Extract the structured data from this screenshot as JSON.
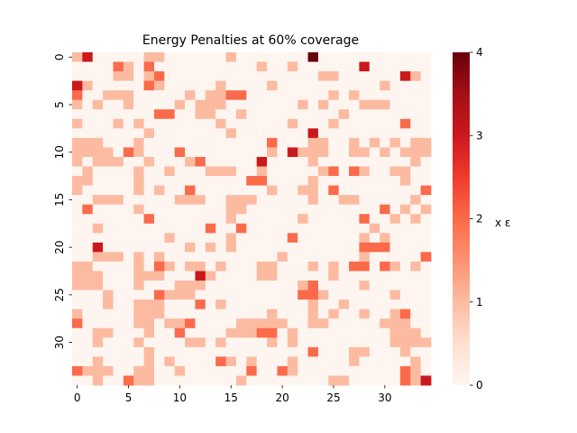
{
  "chart_data": {
    "type": "heatmap",
    "title": "Energy Penalties at 60% coverage",
    "colorbar_label": "x ε",
    "colormap": "Reds",
    "vmin": 0,
    "vmax": 4,
    "rows": 35,
    "cols": 35,
    "x_ticks": [
      0,
      5,
      10,
      15,
      20,
      25,
      30
    ],
    "y_ticks": [
      0,
      5,
      10,
      15,
      20,
      25,
      30
    ],
    "colorbar_ticks": [
      0,
      1,
      2,
      3,
      4
    ],
    "values": [
      [
        1,
        3,
        0,
        0,
        0,
        0,
        0,
        1,
        1,
        0,
        0,
        0,
        0,
        0,
        0,
        1,
        0,
        0,
        0,
        0,
        0,
        0,
        0,
        4,
        0,
        0,
        0,
        0,
        0,
        0,
        0,
        0,
        0,
        0,
        0
      ],
      [
        0,
        0,
        0,
        0,
        2,
        1,
        0,
        2,
        0,
        0,
        0,
        0,
        0,
        0,
        0,
        0,
        0,
        0,
        1,
        0,
        0,
        1,
        0,
        0,
        0,
        0,
        0,
        0,
        3,
        0,
        0,
        0,
        0,
        0,
        0
      ],
      [
        0,
        0,
        0,
        0,
        1,
        1,
        0,
        1,
        2,
        0,
        0,
        0,
        0,
        0,
        0,
        0,
        0,
        0,
        0,
        0,
        0,
        0,
        0,
        0,
        1,
        1,
        0,
        0,
        0,
        0,
        0,
        0,
        3,
        1,
        0
      ],
      [
        3,
        1,
        0,
        0,
        0,
        0,
        0,
        2,
        1,
        0,
        0,
        0,
        0,
        0,
        1,
        0,
        0,
        0,
        0,
        1,
        0,
        0,
        0,
        0,
        0,
        0,
        0,
        0,
        0,
        0,
        1,
        0,
        0,
        0,
        0
      ],
      [
        2,
        0,
        0,
        1,
        1,
        1,
        0,
        0,
        0,
        0,
        0,
        1,
        0,
        1,
        1,
        2,
        2,
        0,
        0,
        0,
        0,
        0,
        0,
        0,
        0,
        1,
        0,
        1,
        0,
        0,
        0,
        0,
        0,
        0,
        0
      ],
      [
        1,
        0,
        1,
        0,
        0,
        1,
        0,
        0,
        0,
        0,
        1,
        0,
        1,
        1,
        1,
        0,
        0,
        0,
        0,
        0,
        0,
        0,
        1,
        0,
        1,
        0,
        0,
        0,
        1,
        1,
        1,
        0,
        0,
        0,
        0
      ],
      [
        0,
        0,
        0,
        0,
        0,
        0,
        0,
        0,
        2,
        2,
        0,
        0,
        1,
        1,
        0,
        0,
        1,
        0,
        0,
        0,
        0,
        0,
        0,
        0,
        0,
        0,
        1,
        0,
        0,
        0,
        0,
        0,
        0,
        0,
        0
      ],
      [
        1,
        0,
        0,
        0,
        1,
        0,
        1,
        0,
        0,
        0,
        0,
        0,
        0,
        0,
        1,
        0,
        0,
        0,
        0,
        0,
        0,
        1,
        0,
        0,
        0,
        1,
        0,
        0,
        0,
        0,
        0,
        0,
        2,
        0,
        0
      ],
      [
        0,
        0,
        0,
        0,
        0,
        0,
        0,
        1,
        0,
        0,
        0,
        0,
        0,
        0,
        0,
        1,
        0,
        0,
        0,
        0,
        0,
        0,
        0,
        3,
        0,
        0,
        0,
        0,
        0,
        0,
        0,
        0,
        0,
        0,
        0
      ],
      [
        1,
        1,
        1,
        0,
        0,
        0,
        1,
        0,
        0,
        0,
        0,
        0,
        0,
        0,
        0,
        0,
        0,
        0,
        0,
        2,
        0,
        0,
        0,
        1,
        1,
        0,
        0,
        1,
        0,
        1,
        0,
        1,
        0,
        1,
        1
      ],
      [
        1,
        1,
        1,
        1,
        0,
        2,
        1,
        0,
        0,
        0,
        2,
        0,
        0,
        0,
        0,
        0,
        0,
        0,
        0,
        1,
        0,
        3,
        1,
        1,
        1,
        0,
        0,
        1,
        1,
        0,
        1,
        0,
        1,
        1,
        1
      ],
      [
        1,
        0,
        1,
        1,
        1,
        0,
        0,
        1,
        0,
        0,
        0,
        1,
        2,
        0,
        0,
        0,
        0,
        0,
        3,
        0,
        0,
        0,
        0,
        1,
        0,
        0,
        0,
        0,
        0,
        0,
        0,
        0,
        0,
        1,
        0
      ],
      [
        0,
        1,
        0,
        0,
        0,
        0,
        1,
        0,
        0,
        1,
        0,
        0,
        0,
        1,
        1,
        1,
        0,
        0,
        1,
        0,
        0,
        0,
        0,
        0,
        1,
        2,
        0,
        2,
        1,
        0,
        0,
        1,
        1,
        0,
        0
      ],
      [
        1,
        1,
        0,
        0,
        0,
        0,
        1,
        0,
        0,
        0,
        0,
        0,
        0,
        0,
        0,
        0,
        0,
        2,
        2,
        0,
        0,
        0,
        0,
        1,
        0,
        0,
        0,
        0,
        0,
        0,
        0,
        0,
        1,
        0,
        0
      ],
      [
        1,
        0,
        0,
        0,
        0,
        0,
        1,
        0,
        1,
        0,
        0,
        2,
        0,
        0,
        0,
        0,
        0,
        0,
        0,
        1,
        0,
        0,
        1,
        1,
        0,
        2,
        0,
        0,
        0,
        0,
        0,
        0,
        0,
        0,
        2
      ],
      [
        0,
        0,
        1,
        1,
        1,
        0,
        0,
        0,
        0,
        0,
        1,
        1,
        1,
        0,
        0,
        1,
        1,
        1,
        0,
        0,
        0,
        0,
        0,
        1,
        0,
        0,
        1,
        1,
        0,
        0,
        0,
        0,
        0,
        1,
        0
      ],
      [
        0,
        2,
        0,
        0,
        0,
        0,
        1,
        0,
        0,
        0,
        0,
        0,
        0,
        0,
        0,
        1,
        1,
        0,
        0,
        0,
        0,
        0,
        0,
        0,
        0,
        0,
        0,
        0,
        0,
        0,
        2,
        0,
        1,
        0,
        1
      ],
      [
        0,
        0,
        0,
        0,
        0,
        0,
        0,
        2,
        0,
        0,
        0,
        0,
        0,
        0,
        0,
        1,
        0,
        0,
        0,
        0,
        0,
        0,
        1,
        0,
        0,
        0,
        0,
        0,
        2,
        0,
        0,
        1,
        0,
        1,
        0
      ],
      [
        0,
        0,
        1,
        0,
        0,
        0,
        0,
        0,
        0,
        0,
        0,
        0,
        0,
        2,
        0,
        0,
        2,
        0,
        0,
        0,
        0,
        0,
        0,
        0,
        0,
        0,
        0,
        0,
        0,
        1,
        0,
        0,
        0,
        0,
        0
      ],
      [
        0,
        0,
        0,
        0,
        0,
        0,
        0,
        0,
        0,
        1,
        0,
        0,
        0,
        0,
        0,
        1,
        0,
        0,
        0,
        0,
        0,
        2,
        0,
        0,
        0,
        0,
        0,
        0,
        1,
        0,
        1,
        0,
        0,
        0,
        0
      ],
      [
        0,
        0,
        3,
        0,
        0,
        0,
        0,
        0,
        0,
        0,
        0,
        1,
        0,
        1,
        0,
        1,
        0,
        0,
        0,
        0,
        0,
        0,
        0,
        0,
        0,
        0,
        0,
        0,
        2,
        2,
        2,
        0,
        0,
        0,
        0
      ],
      [
        0,
        0,
        1,
        1,
        1,
        0,
        1,
        0,
        1,
        0,
        0,
        0,
        0,
        0,
        0,
        0,
        0,
        0,
        0,
        0,
        1,
        0,
        0,
        0,
        0,
        0,
        0,
        0,
        1,
        0,
        0,
        0,
        0,
        0,
        2
      ],
      [
        1,
        1,
        0,
        0,
        0,
        0,
        1,
        0,
        2,
        1,
        0,
        1,
        1,
        0,
        1,
        0,
        0,
        0,
        1,
        1,
        0,
        0,
        0,
        1,
        0,
        1,
        0,
        2,
        2,
        0,
        2,
        1,
        0,
        1,
        0
      ],
      [
        1,
        1,
        1,
        0,
        0,
        0,
        1,
        1,
        1,
        0,
        0,
        0,
        3,
        1,
        0,
        0,
        0,
        0,
        1,
        1,
        0,
        0,
        0,
        0,
        0,
        1,
        0,
        0,
        0,
        0,
        0,
        0,
        0,
        0,
        0
      ],
      [
        1,
        1,
        1,
        0,
        0,
        0,
        1,
        0,
        0,
        0,
        1,
        1,
        1,
        0,
        0,
        0,
        0,
        0,
        0,
        0,
        0,
        0,
        1,
        2,
        0,
        0,
        0,
        0,
        1,
        0,
        0,
        0,
        0,
        0,
        0
      ],
      [
        0,
        0,
        0,
        1,
        0,
        0,
        0,
        0,
        2,
        1,
        1,
        1,
        0,
        0,
        0,
        0,
        0,
        0,
        0,
        0,
        0,
        0,
        2,
        2,
        1,
        0,
        0,
        0,
        0,
        0,
        0,
        1,
        0,
        0,
        0
      ],
      [
        0,
        0,
        0,
        1,
        0,
        0,
        1,
        1,
        1,
        0,
        0,
        0,
        2,
        0,
        1,
        0,
        0,
        0,
        0,
        0,
        0,
        0,
        0,
        1,
        0,
        0,
        1,
        0,
        0,
        0,
        0,
        0,
        0,
        0,
        0
      ],
      [
        1,
        0,
        0,
        0,
        0,
        0,
        1,
        1,
        1,
        0,
        0,
        0,
        0,
        0,
        0,
        0,
        0,
        0,
        0,
        1,
        0,
        0,
        0,
        1,
        0,
        1,
        0,
        0,
        1,
        0,
        0,
        1,
        2,
        0,
        0
      ],
      [
        2,
        0,
        0,
        0,
        0,
        0,
        1,
        1,
        0,
        1,
        1,
        2,
        0,
        0,
        0,
        0,
        1,
        1,
        1,
        1,
        1,
        0,
        0,
        1,
        1,
        0,
        0,
        0,
        0,
        0,
        1,
        1,
        1,
        0,
        0
      ],
      [
        0,
        0,
        1,
        1,
        0,
        0,
        0,
        1,
        0,
        0,
        2,
        0,
        0,
        0,
        0,
        1,
        1,
        1,
        2,
        2,
        0,
        1,
        0,
        0,
        0,
        0,
        0,
        0,
        0,
        0,
        0,
        1,
        1,
        1,
        0
      ],
      [
        0,
        0,
        1,
        0,
        0,
        0,
        1,
        0,
        0,
        0,
        0,
        1,
        1,
        0,
        1,
        0,
        0,
        0,
        0,
        1,
        0,
        1,
        0,
        0,
        0,
        0,
        0,
        0,
        0,
        0,
        0,
        1,
        1,
        1,
        1
      ],
      [
        0,
        0,
        0,
        0,
        0,
        0,
        0,
        1,
        0,
        0,
        0,
        0,
        0,
        0,
        0,
        0,
        0,
        0,
        0,
        0,
        0,
        0,
        0,
        2,
        0,
        0,
        0,
        1,
        1,
        0,
        0,
        0,
        1,
        0,
        0
      ],
      [
        0,
        0,
        1,
        0,
        0,
        0,
        0,
        1,
        0,
        1,
        0,
        0,
        0,
        0,
        2,
        1,
        0,
        1,
        0,
        0,
        0,
        1,
        0,
        0,
        0,
        0,
        0,
        1,
        0,
        0,
        0,
        0,
        0,
        1,
        0
      ],
      [
        2,
        1,
        1,
        1,
        0,
        0,
        1,
        1,
        0,
        0,
        1,
        0,
        0,
        0,
        0,
        0,
        0,
        2,
        0,
        0,
        2,
        1,
        0,
        0,
        0,
        0,
        0,
        0,
        0,
        0,
        0,
        0,
        2,
        1,
        0
      ],
      [
        0,
        0,
        1,
        0,
        0,
        2,
        1,
        1,
        0,
        0,
        0,
        0,
        0,
        0,
        0,
        0,
        1,
        0,
        0,
        0,
        0,
        0,
        0,
        0,
        0,
        1,
        1,
        0,
        0,
        0,
        0,
        0,
        2,
        1,
        3
      ]
    ]
  }
}
